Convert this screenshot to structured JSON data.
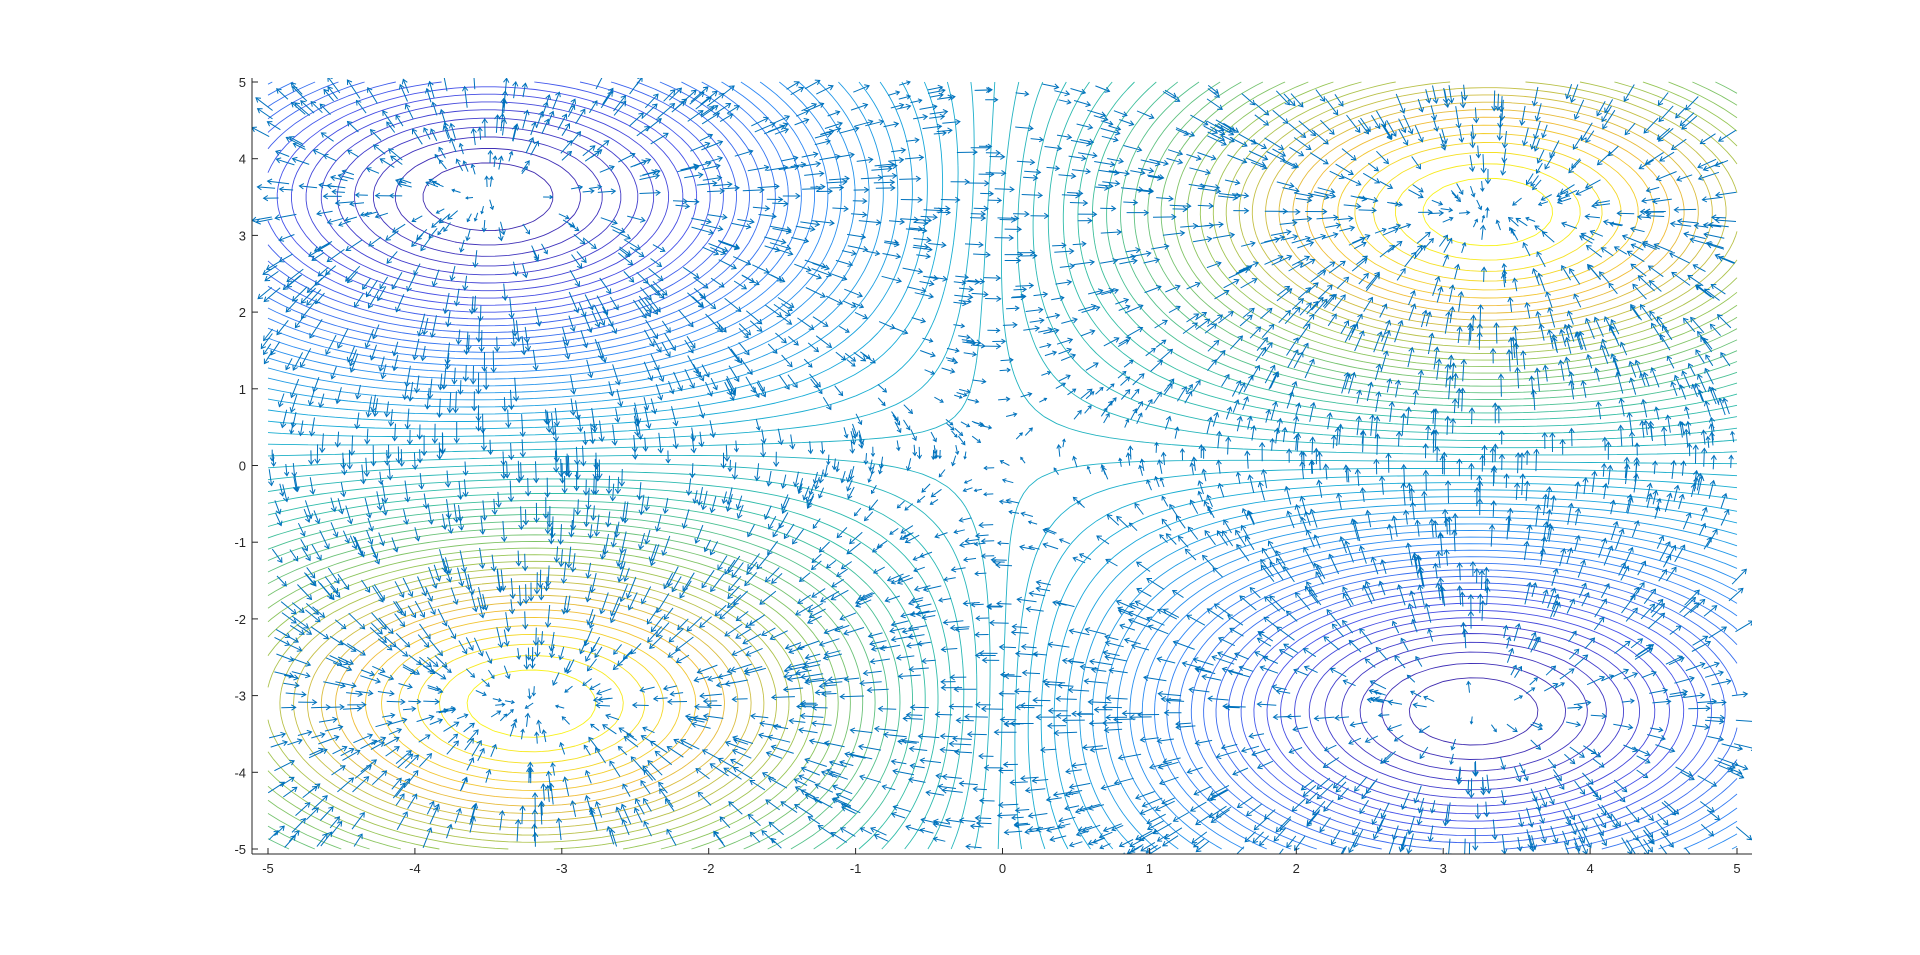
{
  "chart_data": {
    "type": "contour+quiver",
    "title": "",
    "xlabel": "",
    "ylabel": "",
    "xlim": [
      -5,
      5
    ],
    "ylim": [
      -5,
      5
    ],
    "x_ticks": [
      "-5",
      "-4",
      "-3",
      "-2",
      "-1",
      "0",
      "1",
      "2",
      "3",
      "4",
      "5"
    ],
    "y_ticks": [
      "5",
      "4",
      "3",
      "2",
      "1",
      "0",
      "-1",
      "-2",
      "-3",
      "-4",
      "-5"
    ],
    "grid": false,
    "legend": "none",
    "colormap": "parula",
    "contour_levels": 60,
    "extrema": [
      {
        "kind": "minimum",
        "x": -3.5,
        "y": 3.5
      },
      {
        "kind": "maximum",
        "x": 3.3,
        "y": 3.3
      },
      {
        "kind": "maximum",
        "x": -3.2,
        "y": -3.1
      },
      {
        "kind": "minimum",
        "x": 3.2,
        "y": -3.2
      }
    ],
    "quiver_color": "#0072BD",
    "colors": {
      "low": "#3e26a8",
      "mid": "#1cb2c7",
      "high": "#f9fb15",
      "axes": "#262626"
    }
  }
}
